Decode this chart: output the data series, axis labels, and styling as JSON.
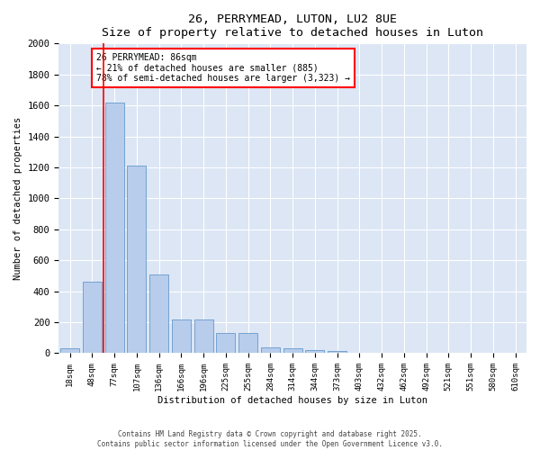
{
  "title": "26, PERRYMEAD, LUTON, LU2 8UE",
  "subtitle": "Size of property relative to detached houses in Luton",
  "xlabel": "Distribution of detached houses by size in Luton",
  "ylabel": "Number of detached properties",
  "bar_labels": [
    "18sqm",
    "48sqm",
    "77sqm",
    "107sqm",
    "136sqm",
    "166sqm",
    "196sqm",
    "225sqm",
    "255sqm",
    "284sqm",
    "314sqm",
    "344sqm",
    "373sqm",
    "403sqm",
    "432sqm",
    "462sqm",
    "492sqm",
    "521sqm",
    "551sqm",
    "580sqm",
    "610sqm"
  ],
  "bar_values": [
    30,
    460,
    1620,
    1210,
    510,
    220,
    220,
    130,
    130,
    40,
    30,
    20,
    15,
    0,
    0,
    0,
    0,
    0,
    0,
    0,
    0
  ],
  "bar_color": "#b8ccec",
  "bar_edgecolor": "#6699cc",
  "vline_x": 1.5,
  "vline_color": "red",
  "annotation_text": "26 PERRYMEAD: 86sqm\n← 21% of detached houses are smaller (885)\n78% of semi-detached houses are larger (3,323) →",
  "ylim": [
    0,
    2000
  ],
  "yticks": [
    0,
    200,
    400,
    600,
    800,
    1000,
    1200,
    1400,
    1600,
    1800,
    2000
  ],
  "background_color": "#dce6f5",
  "grid_color": "white",
  "footer1": "Contains HM Land Registry data © Crown copyright and database right 2025.",
  "footer2": "Contains public sector information licensed under the Open Government Licence v3.0."
}
